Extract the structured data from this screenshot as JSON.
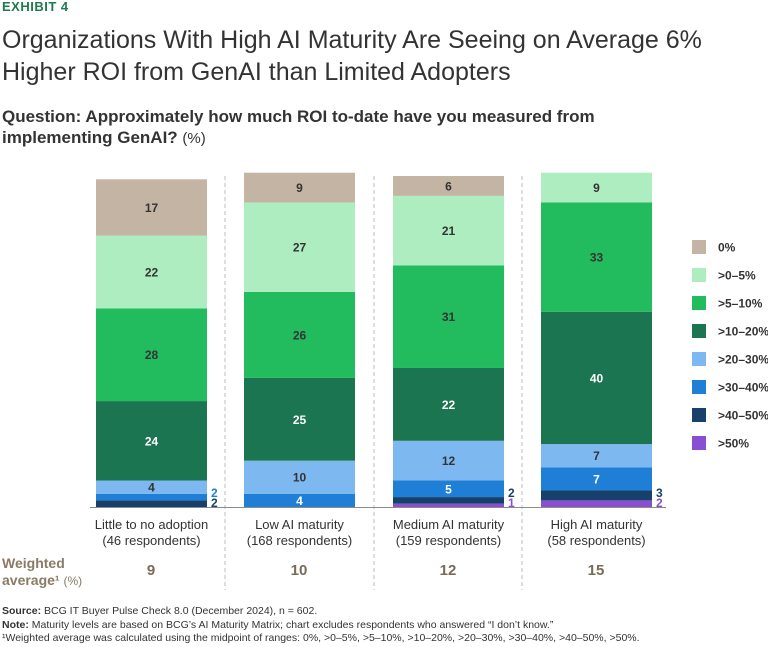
{
  "exhibit": "EXHIBIT 4",
  "title_line1": "Organizations With High AI Maturity Are Seeing on Average 6%",
  "title_line2": "Higher ROI from GenAI than Limited Adopters",
  "question_bold": "Question: Approximately how much ROI to-date have you measured from implementing GenAI?",
  "question_unit": "(%)",
  "chart_data": {
    "type": "bar",
    "stacked": true,
    "categories": [
      {
        "line1": "Little to no adoption",
        "line2": "(46 respondents)"
      },
      {
        "line1": "Low AI maturity",
        "line2": "(168 respondents)"
      },
      {
        "line1": "Medium AI maturity",
        "line2": "(159 respondents)"
      },
      {
        "line1": "High AI maturity",
        "line2": "(58 respondents)"
      }
    ],
    "series": [
      {
        "name": ">50%",
        "color": "#8a4fd1",
        "values": [
          0,
          0,
          1,
          2
        ]
      },
      {
        "name": ">40–50%",
        "color": "#17406b",
        "values": [
          2,
          0,
          2,
          3
        ]
      },
      {
        "name": ">30–40%",
        "color": "#1f7fd6",
        "values": [
          2,
          4,
          5,
          7
        ]
      },
      {
        "name": ">20–30%",
        "color": "#7db8f0",
        "values": [
          4,
          10,
          12,
          7
        ]
      },
      {
        "name": ">10–20%",
        "color": "#1c7551",
        "values": [
          24,
          25,
          22,
          40
        ]
      },
      {
        "name": ">5–10%",
        "color": "#22bb5e",
        "values": [
          28,
          26,
          31,
          33
        ]
      },
      {
        "name": ">0–5%",
        "color": "#aeedc0",
        "values": [
          22,
          27,
          21,
          9
        ]
      },
      {
        "name": "0%",
        "color": "#c3b4a4",
        "values": [
          17,
          9,
          6,
          0
        ]
      }
    ],
    "legend_order": [
      "0%",
      ">0–5%",
      ">5–10%",
      ">10–20%",
      ">20–30%",
      ">30–40%",
      ">40–50%",
      ">50%"
    ],
    "ylim": [
      0,
      100
    ],
    "xlabel": "",
    "ylabel": "",
    "weighted_average": [
      9,
      10,
      12,
      15
    ]
  },
  "weighted_label_line1": "Weighted",
  "weighted_label_line2": "average¹",
  "weighted_label_unit": "(%)",
  "weighted_values": [
    "9",
    "10",
    "12",
    "15"
  ],
  "source_label": "Source:",
  "source_text": "BCG IT Buyer Pulse Check 8.0 (December 2024), n = 602.",
  "note_label": "Note:",
  "note_text": "Maturity levels are based on BCG’s AI Maturity Matrix; chart excludes respondents who answered “I don’t know.”",
  "footnote1": "¹Weighted average was calculated using the midpoint of ranges: 0%, >0–5%, >5–10%, >10–20%, >20–30%, >30–40%, >40–50%, >50%."
}
